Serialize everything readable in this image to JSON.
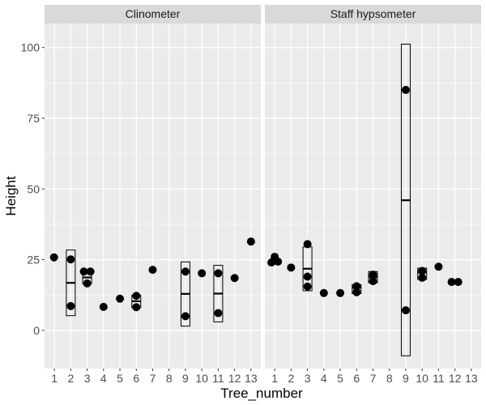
{
  "chart_data": {
    "type": "boxplot-with-points",
    "xlabel": "Tree_number",
    "ylabel": "Height",
    "ylim": [
      -13.5,
      108.5
    ],
    "yticks": [
      0,
      25,
      50,
      75,
      100
    ],
    "xticks": [
      "1",
      "2",
      "3",
      "4",
      "5",
      "6",
      "7",
      "8",
      "9",
      "10",
      "11",
      "12",
      "13"
    ],
    "grid": true,
    "colors": {
      "panel": "#ebebeb",
      "strip": "#d9d9d9",
      "grid": "#ffffff",
      "point": "#000000",
      "box": "#000000"
    },
    "facets": [
      {
        "name": "Clinometer",
        "boxes": [
          {
            "tree": 2,
            "lower": 5.2,
            "q1": 5.2,
            "median": 16.8,
            "q3": 28.4,
            "upper": 28.4
          },
          {
            "tree": 3,
            "lower": 16.5,
            "q1": 16.5,
            "median": 18.7,
            "q3": 20.8,
            "upper": 20.8
          },
          {
            "tree": 6,
            "lower": 8.0,
            "q1": 8.0,
            "median": 10.3,
            "q3": 12.4,
            "upper": 12.4
          },
          {
            "tree": 9,
            "lower": 1.5,
            "q1": 1.5,
            "median": 12.9,
            "q3": 24.2,
            "upper": 24.2
          },
          {
            "tree": 11,
            "lower": 3.0,
            "q1": 3.0,
            "median": 13.0,
            "q3": 23.0,
            "upper": 23.0
          }
        ],
        "points": [
          {
            "x": 0.98,
            "y": 25.8
          },
          {
            "x": 2.0,
            "y": 25.1
          },
          {
            "x": 2.0,
            "y": 8.6
          },
          {
            "x": 2.8,
            "y": 20.8
          },
          {
            "x": 3.0,
            "y": 16.6
          },
          {
            "x": 3.2,
            "y": 20.8
          },
          {
            "x": 4.0,
            "y": 8.3
          },
          {
            "x": 5.0,
            "y": 11.2
          },
          {
            "x": 6.0,
            "y": 8.2
          },
          {
            "x": 6.0,
            "y": 12.2
          },
          {
            "x": 7.0,
            "y": 21.4
          },
          {
            "x": 9.0,
            "y": 20.8
          },
          {
            "x": 9.0,
            "y": 5.0
          },
          {
            "x": 10.0,
            "y": 20.2
          },
          {
            "x": 11.0,
            "y": 20.2
          },
          {
            "x": 11.0,
            "y": 6.1
          },
          {
            "x": 12.0,
            "y": 18.5
          },
          {
            "x": 13.0,
            "y": 31.4
          }
        ]
      },
      {
        "name": "Staff hypsometer",
        "boxes": [
          {
            "tree": 3,
            "lower": 14.0,
            "q1": 14.0,
            "median": 21.8,
            "q3": 29.5,
            "upper": 29.5
          },
          {
            "tree": 6,
            "lower": 13.0,
            "q1": 13.0,
            "median": 15.1,
            "q3": 16.2,
            "upper": 16.2
          },
          {
            "tree": 7,
            "lower": 16.8,
            "q1": 16.8,
            "median": 18.8,
            "q3": 20.8,
            "upper": 20.8
          },
          {
            "tree": 9,
            "lower": -9.0,
            "q1": -9.0,
            "median": 46.0,
            "q3": 101.2,
            "upper": 101.2
          },
          {
            "tree": 10,
            "lower": 18.0,
            "q1": 18.0,
            "median": 20.5,
            "q3": 22.0,
            "upper": 22.0
          }
        ],
        "points": [
          {
            "x": 0.8,
            "y": 24.0
          },
          {
            "x": 1.0,
            "y": 26.0
          },
          {
            "x": 1.2,
            "y": 24.3
          },
          {
            "x": 2.0,
            "y": 22.2
          },
          {
            "x": 3.0,
            "y": 30.5
          },
          {
            "x": 3.0,
            "y": 19.0
          },
          {
            "x": 3.0,
            "y": 15.5
          },
          {
            "x": 4.0,
            "y": 13.2
          },
          {
            "x": 5.0,
            "y": 13.2
          },
          {
            "x": 6.0,
            "y": 13.5
          },
          {
            "x": 6.0,
            "y": 15.6
          },
          {
            "x": 7.0,
            "y": 17.4
          },
          {
            "x": 7.0,
            "y": 19.7
          },
          {
            "x": 9.0,
            "y": 85.0
          },
          {
            "x": 9.0,
            "y": 7.1
          },
          {
            "x": 10.0,
            "y": 18.6
          },
          {
            "x": 10.0,
            "y": 21.0
          },
          {
            "x": 11.0,
            "y": 22.5
          },
          {
            "x": 11.8,
            "y": 17.1
          },
          {
            "x": 12.2,
            "y": 17.1
          }
        ]
      }
    ]
  }
}
